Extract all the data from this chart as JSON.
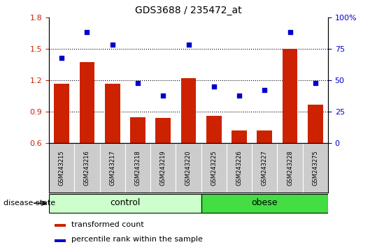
{
  "title": "GDS3688 / 235472_at",
  "samples": [
    "GSM243215",
    "GSM243216",
    "GSM243217",
    "GSM243218",
    "GSM243219",
    "GSM243220",
    "GSM243225",
    "GSM243226",
    "GSM243227",
    "GSM243228",
    "GSM243275"
  ],
  "transformed_count": [
    1.17,
    1.37,
    1.17,
    0.85,
    0.84,
    1.22,
    0.86,
    0.72,
    0.72,
    1.5,
    0.97
  ],
  "percentile_rank": [
    68,
    88,
    78,
    48,
    38,
    78,
    45,
    38,
    42,
    88,
    48
  ],
  "ylim_left": [
    0.6,
    1.8
  ],
  "ylim_right": [
    0,
    100
  ],
  "yticks_left": [
    0.6,
    0.9,
    1.2,
    1.5,
    1.8
  ],
  "yticks_right": [
    0,
    25,
    50,
    75,
    100
  ],
  "grid_yticks": [
    0.9,
    1.2,
    1.5
  ],
  "bar_color": "#cc2200",
  "scatter_color": "#0000cc",
  "control_samples": 6,
  "obese_samples": 5,
  "control_label": "control",
  "obese_label": "obese",
  "disease_state_label": "disease state",
  "legend_bar_label": "transformed count",
  "legend_scatter_label": "percentile rank within the sample",
  "control_color": "#ccffcc",
  "obese_color": "#44dd44",
  "tick_area_color": "#cccccc",
  "background_color": "#ffffff",
  "figsize": [
    5.39,
    3.54
  ],
  "dpi": 100
}
